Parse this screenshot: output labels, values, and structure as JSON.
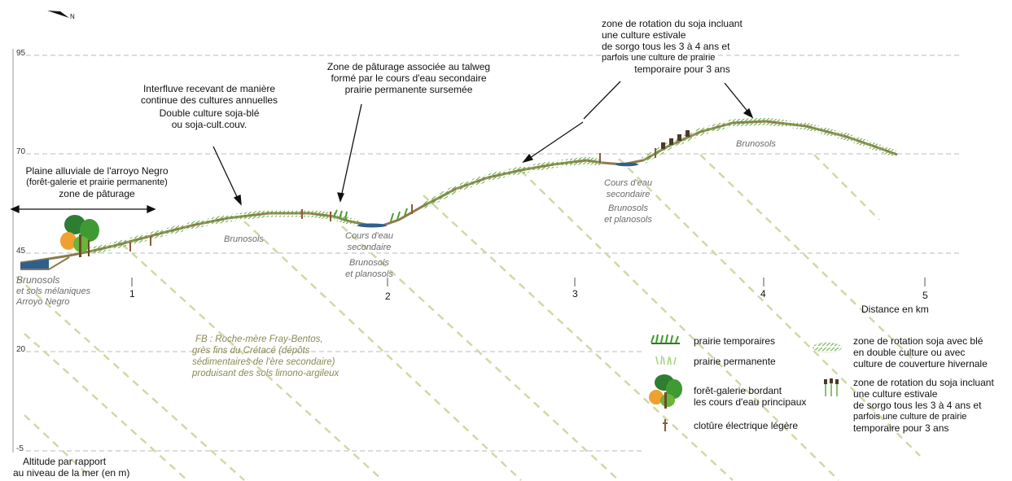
{
  "north_label": "N",
  "y_ticks": [
    "95",
    "70",
    "45",
    "20",
    "-5"
  ],
  "x_ticks": [
    "1",
    "2",
    "3",
    "4",
    "5"
  ],
  "x_axis_label": "Distance en km",
  "y_axis_label": [
    "Altitude par rapport",
    "au niveau de la mer (en m)"
  ],
  "annotations": {
    "plaine": [
      "Plaine alluviale de l'arroyo Negro",
      "(forêt-galerie et prairie permanente)",
      "zone de pâturage"
    ],
    "interfluve": [
      "Interfluve recevant de manière",
      "continue des cultures annuelles",
      "Double culture soja-blé",
      "ou soja-cult.couv."
    ],
    "paturage": [
      "Zone de pâturage associée au talweg",
      "formé par le cours d'eau secondaire",
      "prairie permanente sursemée"
    ],
    "rotation": [
      "zone de rotation du soja incluant",
      "une culture estivale",
      "de sorgo tous les 3 à 4 ans et",
      "parfois une culture de prairie",
      "temporaire pour 3 ans"
    ]
  },
  "soils": {
    "left": [
      "Brunosols",
      "et sols mélaniques",
      "Arroyo Negro"
    ],
    "brunosols_1": "Brunosols",
    "cours1": [
      "Cours d'eau",
      "secondaire",
      "Brunosols",
      "et planosols"
    ],
    "cours2": [
      "Cours d'eau",
      "secondaire",
      "Brunosols",
      "et planosols"
    ],
    "brunosols_2": "Brunosols"
  },
  "geology": [
    "FB : Roche-mère Fray-Bentos,",
    "grès fins du Crétacé (dépôts",
    "sédimentaires de l'ère secondaire)",
    "produisant des sols limono-argileux"
  ],
  "legend": {
    "temporaire": "prairie temporaires",
    "permanente": "prairie permanente",
    "foret": [
      "forêt-galerie bordant",
      "les cours d'eau principaux"
    ],
    "cloture": "clotûre électrique légère",
    "soja_ble": [
      "zone de rotation soja avec blé",
      "en double culture ou avec",
      "culture de couverture hivernale"
    ],
    "sorgo": [
      "zone de rotation du soja incluant",
      "une culture estivale",
      "de sorgo tous les 3 à 4 ans et",
      "parfois une culture de prairie",
      "temporaire pour 3 ans"
    ]
  },
  "colors": {
    "ground": "#8d7b4d",
    "grass": "#5aa832",
    "pale_grass": "#b6d89a",
    "water": "#2f5f8f",
    "strata": "#cfd6a0"
  }
}
